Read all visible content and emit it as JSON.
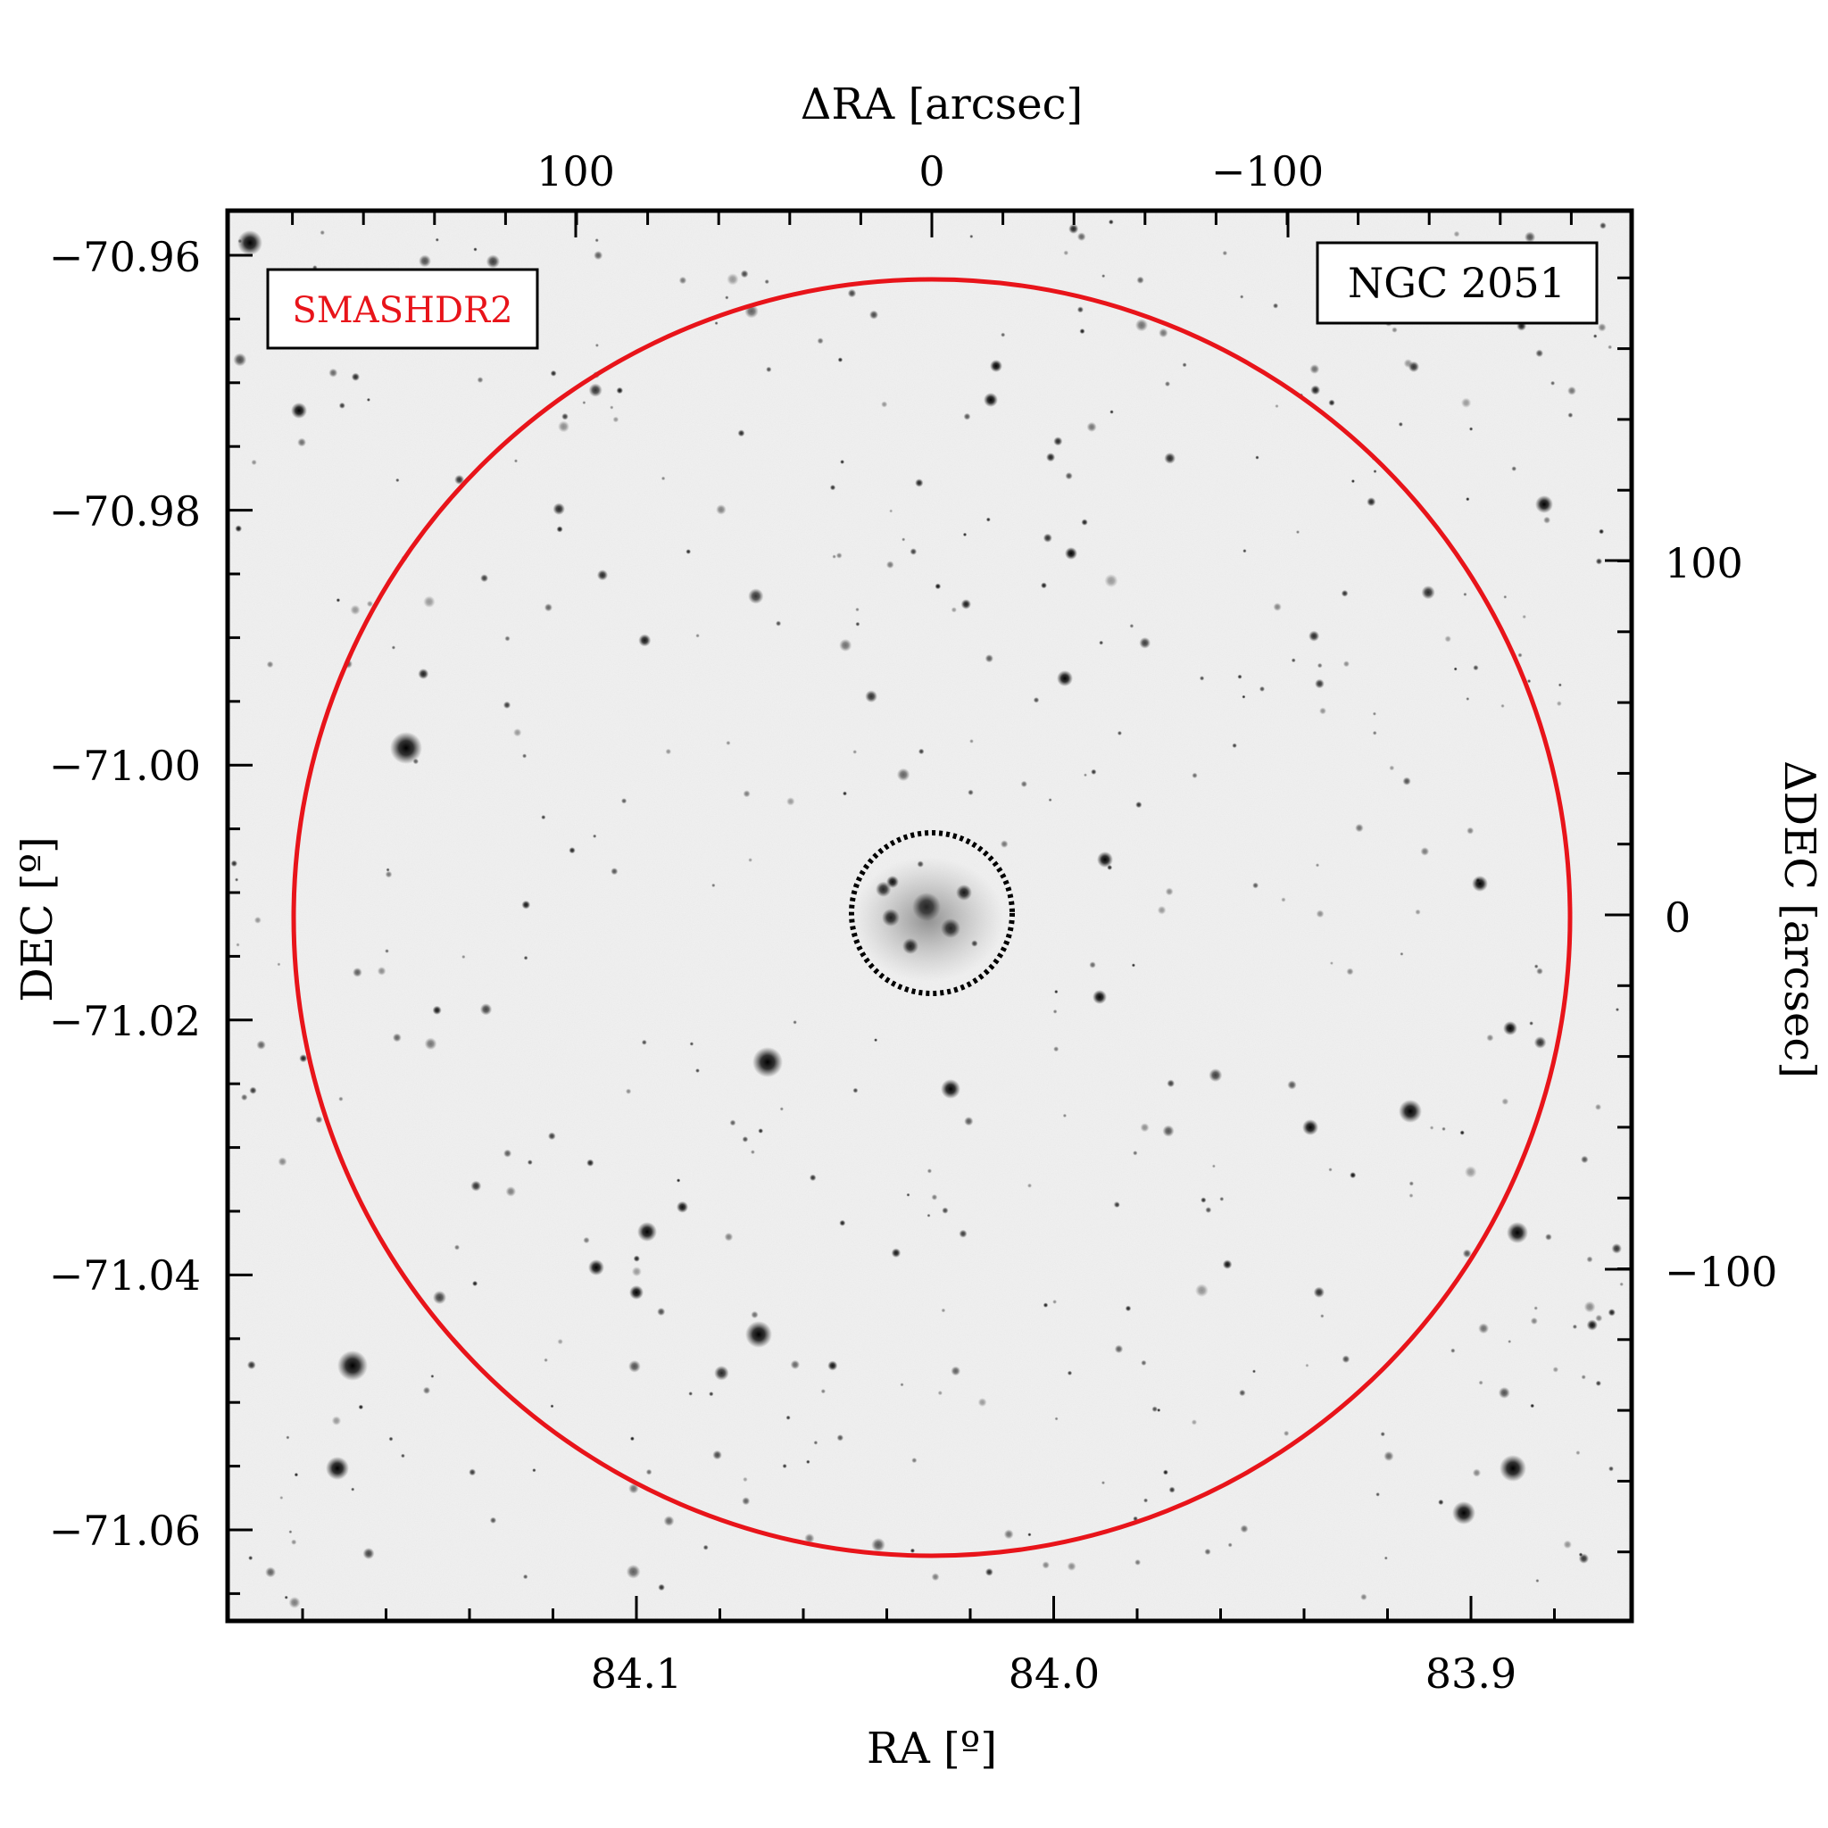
{
  "image": {
    "survey_label": "SMASHDR2",
    "cluster_label": "NGC 2051",
    "x_bottom_title": "RA [º]",
    "x_top_title": "ΔRA [arcsec]",
    "y_left_title": "DEC [º]",
    "y_right_title": "ΔDEC [arcsec]",
    "ra_ticks": [
      "84.1",
      "84.0",
      "83.9"
    ],
    "dec_ticks": [
      "−70.96",
      "−70.98",
      "−71.00",
      "−71.02",
      "−71.04",
      "−71.06"
    ],
    "dra_ticks": [
      "100",
      "0",
      "−100"
    ],
    "ddec_ticks": [
      "100",
      "0",
      "−100"
    ],
    "colors": {
      "outer_circle": "#e8141a",
      "inner_circle": "#000000",
      "background": "#f2f2f2"
    }
  }
}
